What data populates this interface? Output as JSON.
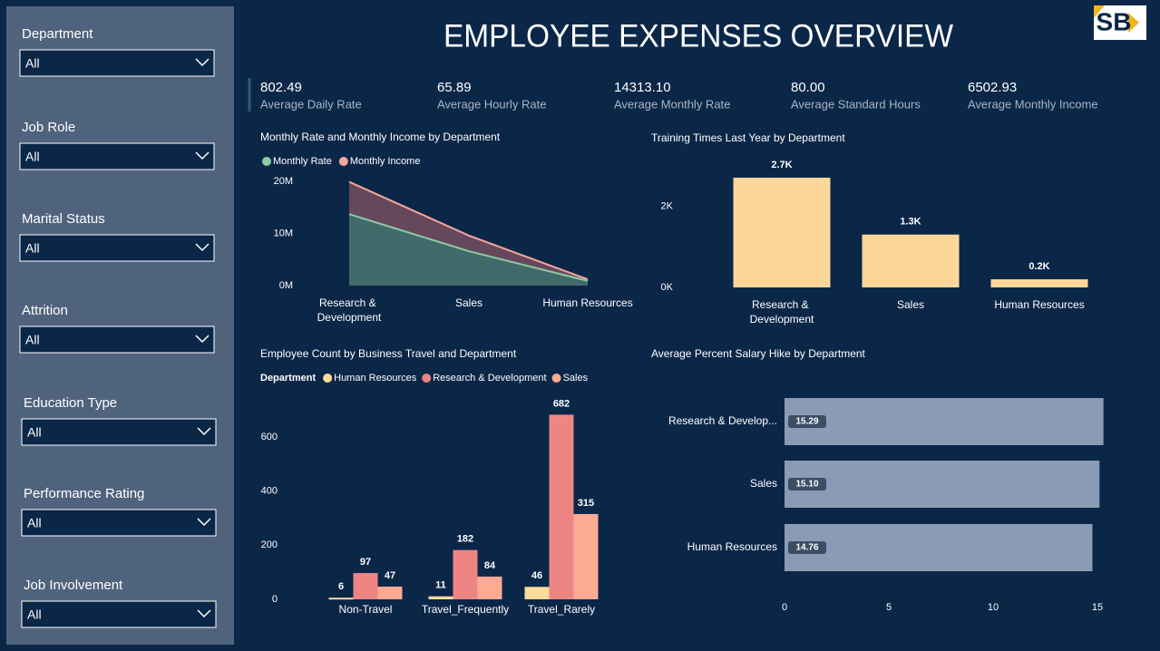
{
  "title": "EMPLOYEE EXPENSES OVERVIEW",
  "logo": "SB",
  "filters": [
    {
      "label": "Department",
      "value": "All"
    },
    {
      "label": "Job Role",
      "value": "All"
    },
    {
      "label": "Marital Status",
      "value": "All"
    },
    {
      "label": "Attrition",
      "value": "All"
    },
    {
      "label": "Education Type",
      "value": "All"
    },
    {
      "label": "Performance Rating",
      "value": "All"
    },
    {
      "label": "Job Involvement",
      "value": "All"
    }
  ],
  "kpis": [
    {
      "value": "802.49",
      "label": "Average Daily Rate"
    },
    {
      "value": "65.89",
      "label": "Average Hourly Rate"
    },
    {
      "value": "14313.10",
      "label": "Average Monthly Rate"
    },
    {
      "value": "80.00",
      "label": "Average Standard Hours"
    },
    {
      "value": "6502.93",
      "label": "Average Monthly Income"
    }
  ],
  "chart_data": [
    {
      "type": "area",
      "title": "Monthly Rate and Monthly Income by Department",
      "categories": [
        "Research & Development",
        "Sales",
        "Human Resources"
      ],
      "series": [
        {
          "name": "Monthly Rate",
          "color": "#8fc9a6",
          "values": [
            13700000,
            6600000,
            900000
          ]
        },
        {
          "name": "Monthly Income",
          "color": "#f4a79c",
          "values": [
            19900000,
            9600000,
            1200000
          ]
        }
      ],
      "ylim": [
        0,
        20000000
      ],
      "yticks": [
        {
          "value": 0,
          "label": "0M"
        },
        {
          "value": 10000000,
          "label": "10M"
        },
        {
          "value": 20000000,
          "label": "20M"
        }
      ]
    },
    {
      "type": "bar",
      "title": "Training Times Last Year by Department",
      "categories": [
        "Research & Development",
        "Sales",
        "Human Resources"
      ],
      "values": [
        2700,
        1300,
        200
      ],
      "value_labels": [
        "2.7K",
        "1.3K",
        "0.2K"
      ],
      "color": "#fdd79a",
      "ylim": [
        0,
        2900
      ],
      "yticks": [
        {
          "value": 0,
          "label": "0K"
        },
        {
          "value": 2000,
          "label": "2K"
        }
      ]
    },
    {
      "type": "grouped_bar",
      "title": "Employee Count by Business Travel and Department",
      "legend_title": "Department",
      "categories": [
        "Non-Travel",
        "Travel_Frequently",
        "Travel_Rarely"
      ],
      "series": [
        {
          "name": "Human Resources",
          "color": "#fddb9b",
          "values": [
            6,
            11,
            46
          ]
        },
        {
          "name": "Research & Development",
          "color": "#ee8585",
          "values": [
            97,
            182,
            682
          ]
        },
        {
          "name": "Sales",
          "color": "#fdaa94",
          "values": [
            47,
            84,
            315
          ]
        }
      ],
      "ylim": [
        0,
        700
      ],
      "yticks": [
        0,
        200,
        400,
        600
      ]
    },
    {
      "type": "hbar",
      "title": "Average Percent Salary Hike by Department",
      "categories": [
        "Research & Develop...",
        "Sales",
        "Human Resources"
      ],
      "values": [
        15.29,
        15.1,
        14.76
      ],
      "value_labels": [
        "15.29",
        "15.10",
        "14.76"
      ],
      "color": "#8b9bb6",
      "xlim": [
        0,
        16
      ],
      "xticks": [
        0,
        5,
        10,
        15
      ]
    }
  ]
}
